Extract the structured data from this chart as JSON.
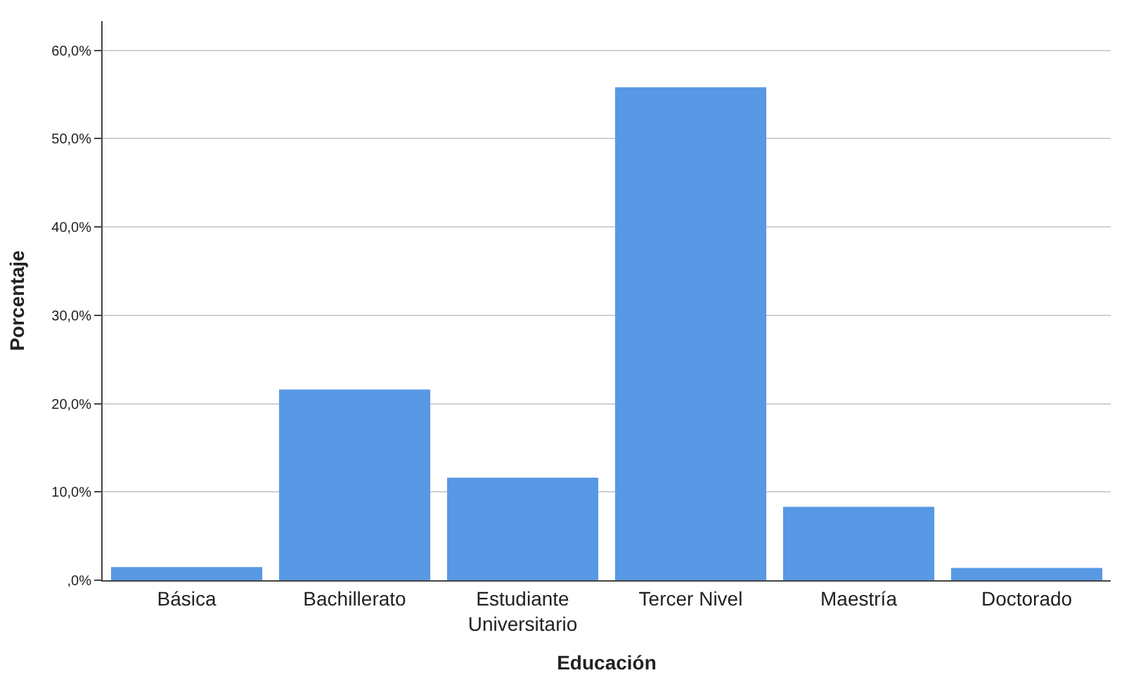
{
  "chart_data": {
    "type": "bar",
    "xlabel": "Educación",
    "ylabel": "Porcentaje",
    "categories": [
      "Básica",
      "Bachillerato",
      "Estudiante Universitario",
      "Tercer Nivel",
      "Maestría",
      "Doctorado"
    ],
    "values": [
      1.5,
      21.6,
      11.6,
      55.8,
      8.3,
      1.4
    ],
    "color": "#5898e4",
    "ylim": [
      0,
      63.3
    ],
    "yticks": [
      {
        "value": 0,
        "label": ",0%"
      },
      {
        "value": 10,
        "label": "10,0%"
      },
      {
        "value": 20,
        "label": "20,0%"
      },
      {
        "value": 30,
        "label": "30,0%"
      },
      {
        "value": 40,
        "label": "40,0%"
      },
      {
        "value": 50,
        "label": "50,0%"
      },
      {
        "value": 60,
        "label": "60,0%"
      }
    ],
    "grid": "y"
  }
}
